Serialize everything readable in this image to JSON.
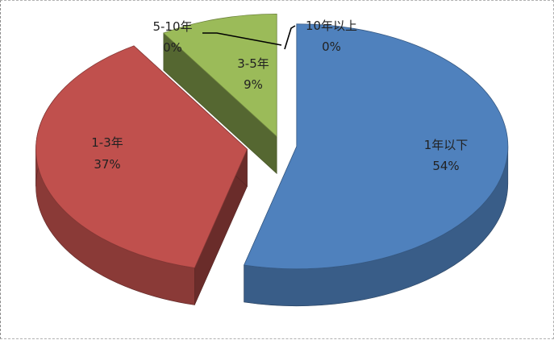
{
  "chart_data": {
    "type": "pie",
    "style": "3d-exploded",
    "title": "",
    "categories": [
      "1年以下",
      "1-3年",
      "3-5年",
      "5-10年",
      "10年以上"
    ],
    "values": [
      54,
      37,
      9,
      0,
      0
    ],
    "value_labels": [
      "54%",
      "37%",
      "9%",
      "0%",
      "0%"
    ],
    "colors": [
      "#4f81bd",
      "#c0504d",
      "#9bbb59",
      "#8064a2",
      "#4bacc6"
    ],
    "legend": "none",
    "data_labels": "category-and-percent"
  }
}
